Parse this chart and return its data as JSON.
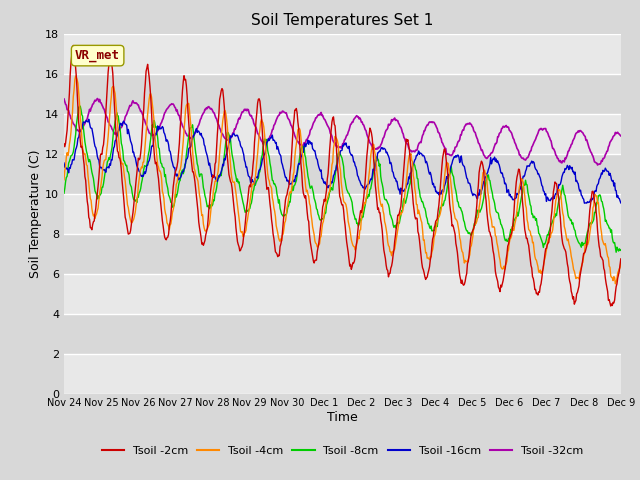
{
  "title": "Soil Temperatures Set 1",
  "xlabel": "Time",
  "ylabel": "Soil Temperature (C)",
  "ylim": [
    0,
    18
  ],
  "yticks": [
    0,
    2,
    4,
    6,
    8,
    10,
    12,
    14,
    16,
    18
  ],
  "colors": {
    "Tsoil -2cm": "#cc0000",
    "Tsoil -4cm": "#ff8800",
    "Tsoil -8cm": "#00cc00",
    "Tsoil -16cm": "#0000cc",
    "Tsoil -32cm": "#aa00aa"
  },
  "legend_labels": [
    "Tsoil -2cm",
    "Tsoil -4cm",
    "Tsoil -8cm",
    "Tsoil -16cm",
    "Tsoil -32cm"
  ],
  "annotation_text": "VR_met",
  "annotation_color": "#8b0000",
  "annotation_bg": "#ffffcc",
  "bg_color": "#d8d8d8",
  "plot_bg": "#e8e8e8",
  "stripe_color": "#d0d0d0",
  "tick_labels": [
    "Nov 24",
    "Nov 25",
    "Nov 26",
    "Nov 27",
    "Nov 28",
    "Nov 29",
    "Nov 30",
    "Dec 1",
    "Dec 2",
    "Dec 3",
    "Dec 4",
    "Dec 5",
    "Dec 6",
    "Dec 7",
    "Dec 8",
    "Dec 9"
  ],
  "tick_positions": [
    0,
    1,
    2,
    3,
    4,
    5,
    6,
    7,
    8,
    9,
    10,
    11,
    12,
    13,
    14,
    15
  ]
}
